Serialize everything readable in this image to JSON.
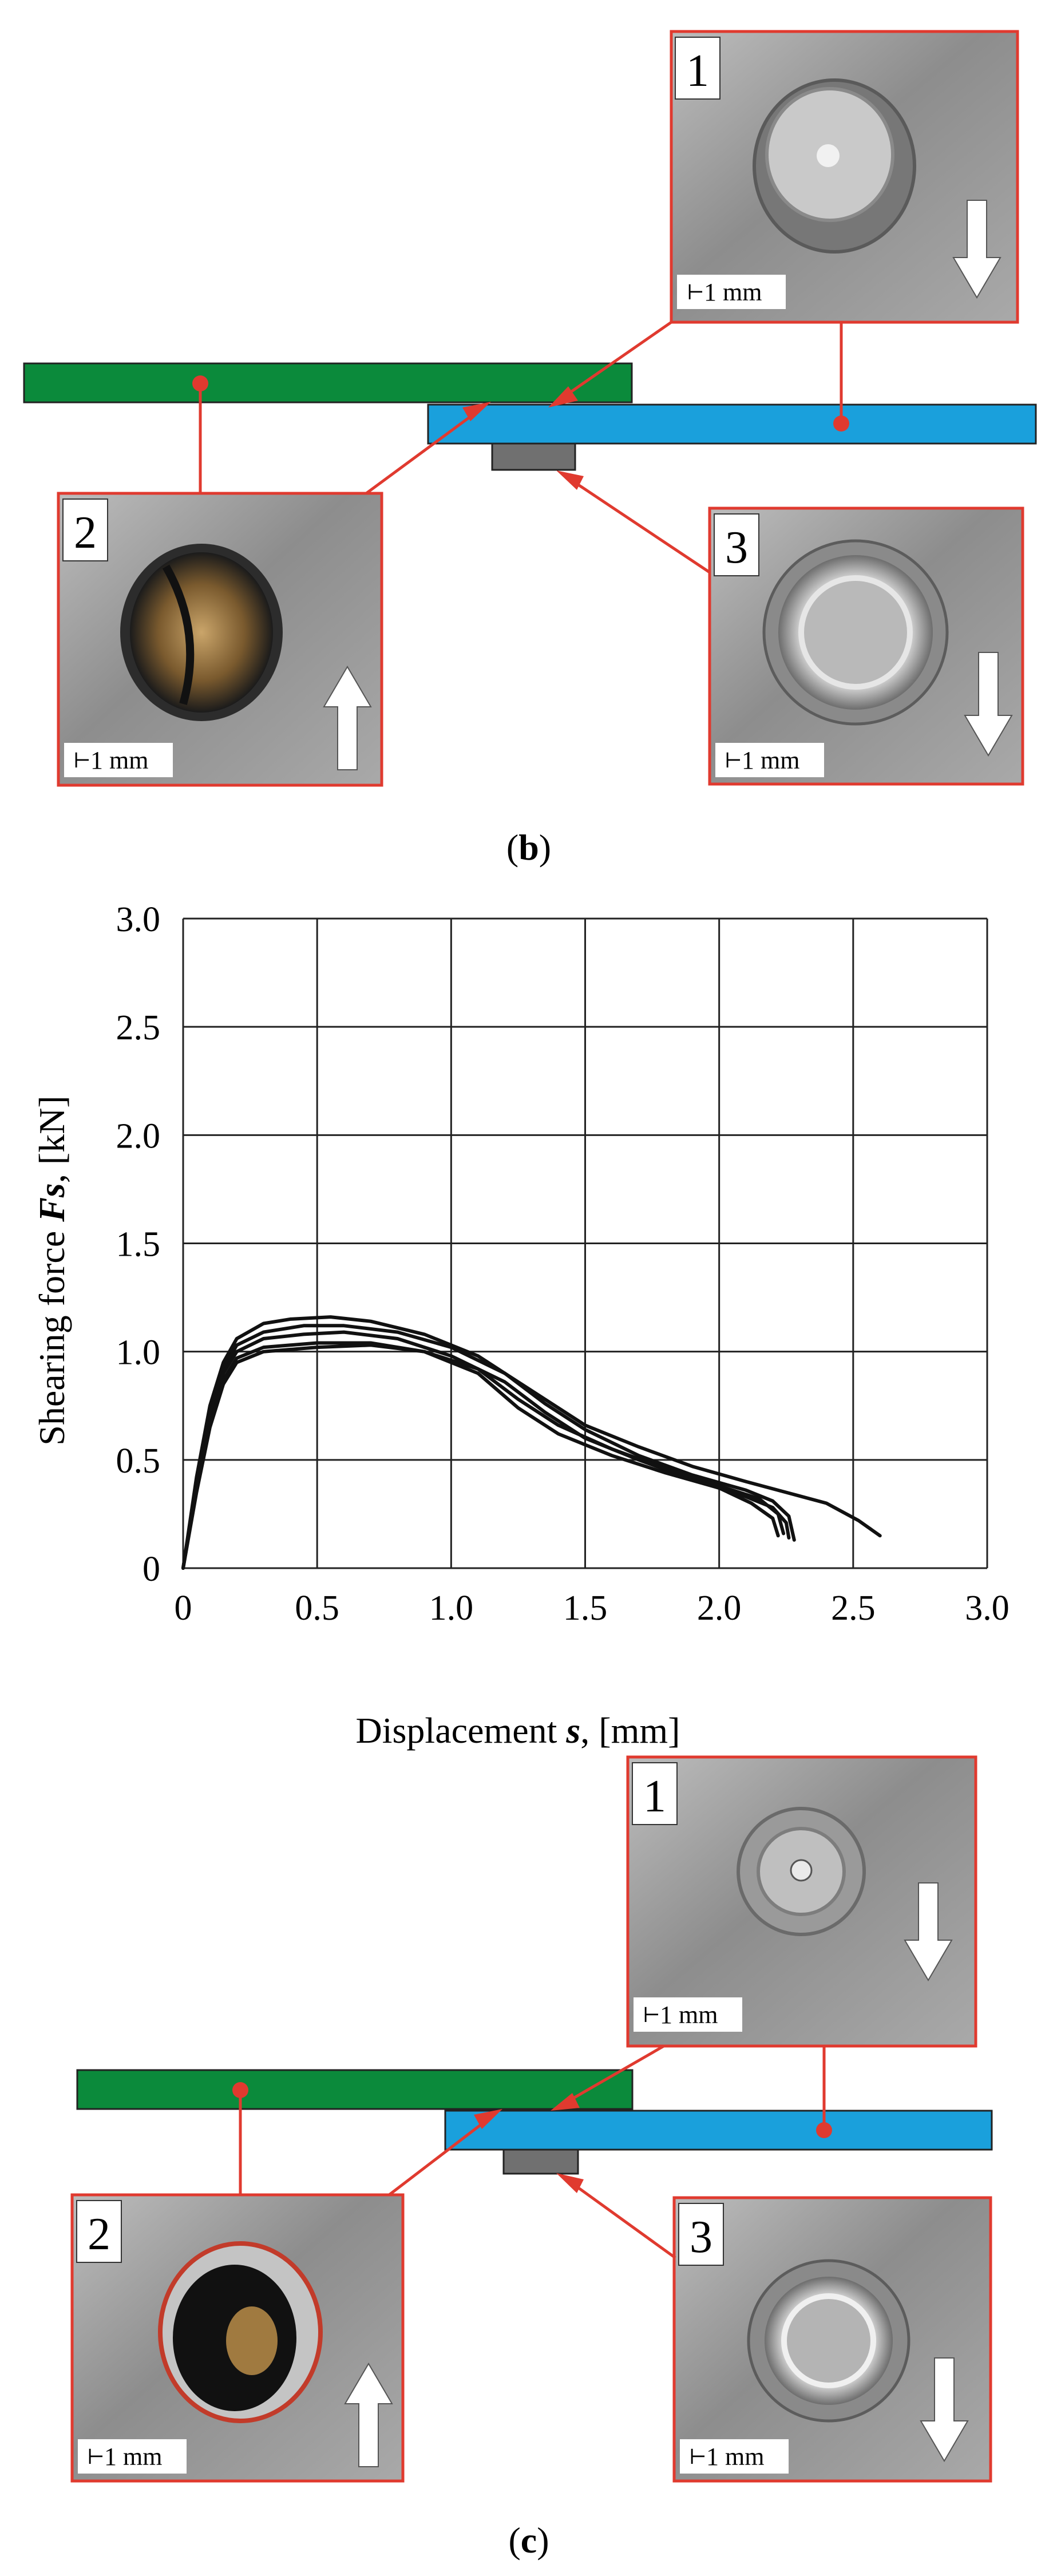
{
  "panel_b": {
    "caption_open": "(",
    "caption_letter": "b",
    "caption_close": ")",
    "photos": [
      {
        "number": "1",
        "scale": "1 mm",
        "arrow": "down"
      },
      {
        "number": "2",
        "scale": "1 mm",
        "arrow": "up"
      },
      {
        "number": "3",
        "scale": "1 mm",
        "arrow": "down"
      }
    ]
  },
  "panel_c": {
    "caption_open": "(",
    "caption_letter": "c",
    "caption_close": ")",
    "photos": [
      {
        "number": "1",
        "scale": "1 mm",
        "arrow": "down"
      },
      {
        "number": "2",
        "scale": "1 mm",
        "arrow": "up"
      },
      {
        "number": "3",
        "scale": "1 mm",
        "arrow": "down"
      }
    ]
  },
  "colors": {
    "top_sheet": "#0b8a3b",
    "bottom_sheet": "#1aa0dc",
    "rivet_head": "#707070",
    "callout_red": "#e03a2f",
    "curve": "#111111",
    "grid": "#222222"
  },
  "chart_data": {
    "type": "line",
    "title": "",
    "xlabel_text": "Displacement ",
    "xlabel_var": "s",
    "xlabel_unit": ", [mm]",
    "ylabel_text": "Shearing force ",
    "ylabel_var": "Fs",
    "ylabel_unit": ", [kN]",
    "xlim": [
      0,
      3.0
    ],
    "ylim": [
      0,
      3.0
    ],
    "xticks": [
      "0",
      "0.5",
      "1.0",
      "1.5",
      "2.0",
      "2.5",
      "3.0"
    ],
    "yticks": [
      "0",
      "0.5",
      "1.0",
      "1.5",
      "2.0",
      "2.5",
      "3.0"
    ],
    "grid": true,
    "legend": "none",
    "series": [
      {
        "points": [
          [
            0,
            0
          ],
          [
            0.05,
            0.42
          ],
          [
            0.1,
            0.75
          ],
          [
            0.15,
            0.95
          ],
          [
            0.2,
            1.06
          ],
          [
            0.3,
            1.13
          ],
          [
            0.4,
            1.15
          ],
          [
            0.55,
            1.16
          ],
          [
            0.7,
            1.14
          ],
          [
            0.9,
            1.08
          ],
          [
            1.1,
            0.98
          ],
          [
            1.3,
            0.82
          ],
          [
            1.5,
            0.66
          ],
          [
            1.7,
            0.56
          ],
          [
            1.9,
            0.47
          ],
          [
            2.1,
            0.4
          ],
          [
            2.25,
            0.35
          ],
          [
            2.4,
            0.3
          ],
          [
            2.52,
            0.22
          ],
          [
            2.6,
            0.15
          ]
        ]
      },
      {
        "points": [
          [
            0,
            0
          ],
          [
            0.05,
            0.4
          ],
          [
            0.1,
            0.72
          ],
          [
            0.15,
            0.92
          ],
          [
            0.2,
            1.03
          ],
          [
            0.3,
            1.09
          ],
          [
            0.45,
            1.12
          ],
          [
            0.6,
            1.12
          ],
          [
            0.8,
            1.09
          ],
          [
            1.0,
            1.02
          ],
          [
            1.2,
            0.9
          ],
          [
            1.35,
            0.76
          ],
          [
            1.5,
            0.64
          ],
          [
            1.7,
            0.52
          ],
          [
            1.9,
            0.43
          ],
          [
            2.1,
            0.36
          ],
          [
            2.2,
            0.31
          ],
          [
            2.26,
            0.24
          ],
          [
            2.28,
            0.13
          ]
        ]
      },
      {
        "points": [
          [
            0,
            0
          ],
          [
            0.05,
            0.38
          ],
          [
            0.1,
            0.7
          ],
          [
            0.15,
            0.9
          ],
          [
            0.2,
            1.0
          ],
          [
            0.3,
            1.06
          ],
          [
            0.45,
            1.08
          ],
          [
            0.6,
            1.09
          ],
          [
            0.8,
            1.06
          ],
          [
            1.0,
            0.98
          ],
          [
            1.2,
            0.86
          ],
          [
            1.35,
            0.72
          ],
          [
            1.5,
            0.6
          ],
          [
            1.7,
            0.5
          ],
          [
            1.9,
            0.41
          ],
          [
            2.1,
            0.33
          ],
          [
            2.2,
            0.28
          ],
          [
            2.25,
            0.21
          ],
          [
            2.26,
            0.14
          ]
        ]
      },
      {
        "points": [
          [
            0,
            0
          ],
          [
            0.05,
            0.36
          ],
          [
            0.1,
            0.67
          ],
          [
            0.15,
            0.87
          ],
          [
            0.2,
            0.97
          ],
          [
            0.3,
            1.02
          ],
          [
            0.5,
            1.04
          ],
          [
            0.7,
            1.04
          ],
          [
            0.9,
            1.0
          ],
          [
            1.1,
            0.92
          ],
          [
            1.25,
            0.78
          ],
          [
            1.4,
            0.66
          ],
          [
            1.6,
            0.55
          ],
          [
            1.8,
            0.46
          ],
          [
            2.0,
            0.38
          ],
          [
            2.15,
            0.32
          ],
          [
            2.22,
            0.25
          ],
          [
            2.24,
            0.16
          ]
        ]
      },
      {
        "points": [
          [
            0,
            0
          ],
          [
            0.05,
            0.35
          ],
          [
            0.1,
            0.65
          ],
          [
            0.15,
            0.85
          ],
          [
            0.2,
            0.95
          ],
          [
            0.3,
            1.0
          ],
          [
            0.5,
            1.02
          ],
          [
            0.7,
            1.03
          ],
          [
            0.9,
            1.0
          ],
          [
            1.1,
            0.9
          ],
          [
            1.25,
            0.74
          ],
          [
            1.4,
            0.62
          ],
          [
            1.6,
            0.52
          ],
          [
            1.8,
            0.44
          ],
          [
            2.0,
            0.37
          ],
          [
            2.12,
            0.3
          ],
          [
            2.2,
            0.23
          ],
          [
            2.22,
            0.15
          ]
        ]
      }
    ]
  }
}
